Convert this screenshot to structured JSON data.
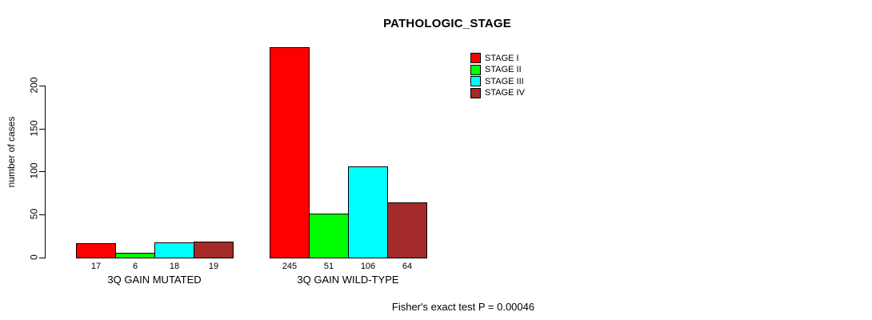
{
  "title": "PATHOLOGIC_STAGE",
  "footer": "Fisher's exact test P = 0.00046",
  "y_axis": {
    "label": "number of cases",
    "ticks": [
      0,
      50,
      100,
      150,
      200
    ]
  },
  "legend": {
    "items": [
      {
        "label": "STAGE I",
        "color": "#FF0000"
      },
      {
        "label": "STAGE II",
        "color": "#00FF00"
      },
      {
        "label": "STAGE III",
        "color": "#00FFFF"
      },
      {
        "label": "STAGE IV",
        "color": "#A52A2A"
      }
    ]
  },
  "chart_data": {
    "type": "bar",
    "title": "PATHOLOGIC_STAGE",
    "xlabel": "",
    "ylabel": "number of cases",
    "categories": [
      "3Q GAIN MUTATED",
      "3Q GAIN WILD-TYPE"
    ],
    "series": [
      {
        "name": "STAGE I",
        "color": "#FF0000",
        "values": [
          17,
          245
        ]
      },
      {
        "name": "STAGE II",
        "color": "#00FF00",
        "values": [
          6,
          51
        ]
      },
      {
        "name": "STAGE III",
        "color": "#00FFFF",
        "values": [
          18,
          106
        ]
      },
      {
        "name": "STAGE IV",
        "color": "#A52A2A",
        "values": [
          19,
          64
        ]
      }
    ],
    "bar_value_labels": [
      [
        17,
        6,
        18,
        19
      ],
      [
        245,
        51,
        106,
        64
      ]
    ],
    "ylim": [
      0,
      200
    ],
    "y_ticks": [
      0,
      50,
      100,
      150,
      200
    ],
    "grid": false,
    "legend_position": "top-right",
    "annotation": "Fisher's exact test P = 0.00046"
  }
}
